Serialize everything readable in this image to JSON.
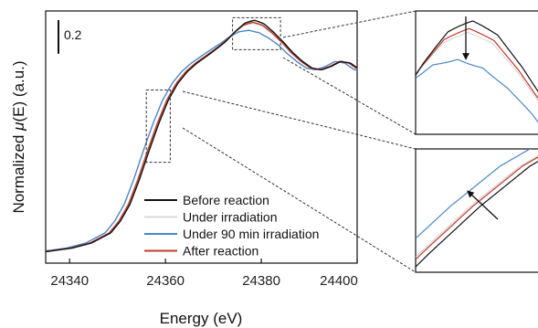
{
  "chart_data": {
    "type": "line",
    "xlabel": "Energy (eV)",
    "ylabel_prefix": "Normalized ",
    "ylabel_mu": "μ",
    "ylabel_suffix": "(E) (a.u.)",
    "xlim": [
      24335,
      24400
    ],
    "ylim": [
      0,
      1.4
    ],
    "x_ticks": [
      "24340",
      "24360",
      "24380",
      "24400"
    ],
    "scale_bar_label": "0.2",
    "scale_bar_value": 0.2,
    "legend_position": "bottom-center",
    "series": [
      {
        "name": "Before reaction",
        "color": "#111111",
        "shift": 0.6,
        "peak_delta": 0.03
      },
      {
        "name": "Under irradiation",
        "color": "#d9d9d9",
        "shift": 0.2,
        "peak_delta": 0.012
      },
      {
        "name": "Under 90 min irradiation",
        "color": "#4a86c8",
        "shift": -0.6,
        "peak_delta": -0.03
      },
      {
        "name": "After reaction",
        "color": "#c0392b",
        "shift": 0.3,
        "peak_delta": 0.018
      }
    ],
    "base_curve": {
      "x": [
        24335,
        24340,
        24344,
        24348,
        24350,
        24352,
        24354,
        24356,
        24358,
        24360,
        24362,
        24364,
        24366,
        24368,
        24370,
        24372,
        24374,
        24376,
        24378,
        24380,
        24382,
        24384,
        24386,
        24388,
        24390,
        24392,
        24394,
        24396,
        24398,
        24400
      ],
      "y": [
        0.02,
        0.04,
        0.07,
        0.13,
        0.2,
        0.3,
        0.45,
        0.62,
        0.78,
        0.92,
        1.02,
        1.09,
        1.14,
        1.18,
        1.22,
        1.26,
        1.31,
        1.35,
        1.365,
        1.35,
        1.31,
        1.26,
        1.2,
        1.15,
        1.11,
        1.1,
        1.12,
        1.15,
        1.14,
        1.1
      ]
    },
    "insets": [
      {
        "name": "peak-inset",
        "x_range": [
          24374,
          24384
        ],
        "y_range": [
          1.22,
          1.41
        ],
        "arrow": "down"
      },
      {
        "name": "edge-inset",
        "x_range": [
          24356,
          24361
        ],
        "y_range": [
          0.55,
          0.98
        ],
        "arrow": "up-left"
      }
    ]
  }
}
